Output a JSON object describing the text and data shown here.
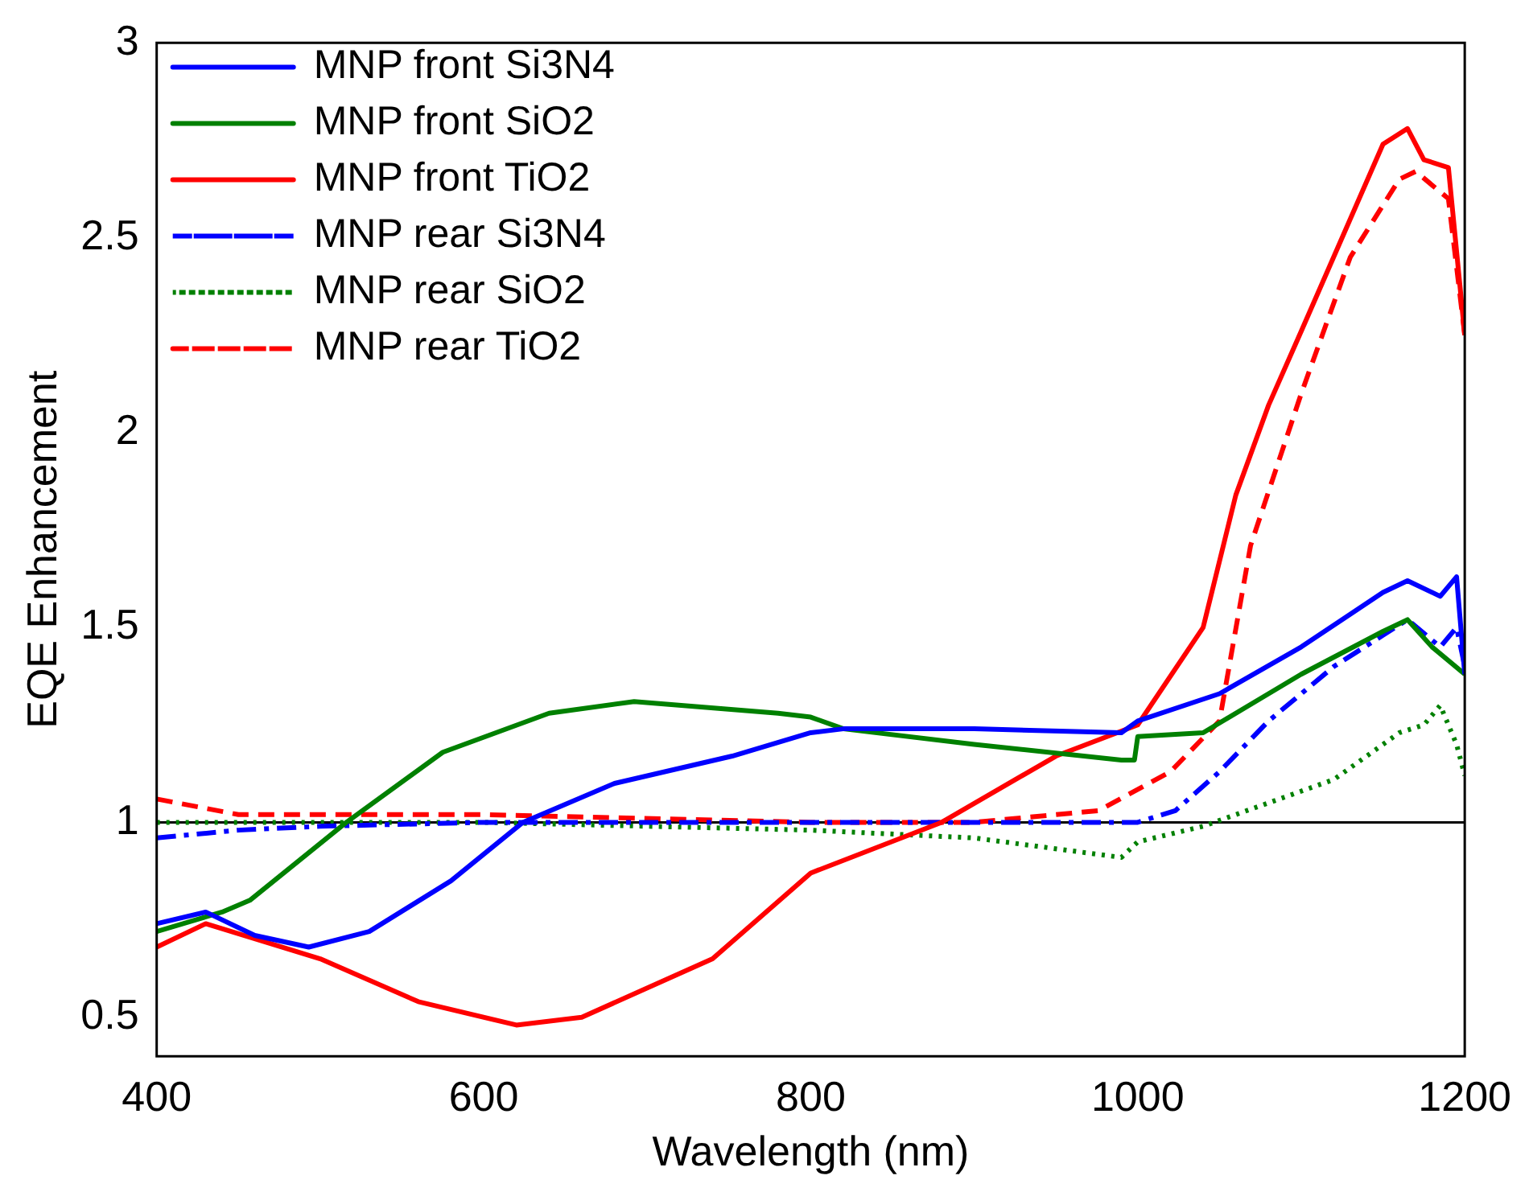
{
  "chart_data": {
    "type": "line",
    "xlabel": "Wavelength (nm)",
    "ylabel": "EQE Enhancement",
    "xlim": [
      400,
      1200
    ],
    "xticks": [
      400,
      600,
      800,
      1000,
      1200
    ],
    "ylim": [
      0.4,
      3
    ],
    "yticks": [
      0.5,
      1,
      1.5,
      2,
      2.5,
      3
    ],
    "grid": false,
    "legend": "top left",
    "marker": "none",
    "ref_lines": [
      {
        "axis": "y",
        "value": 1,
        "color": "#000000"
      }
    ],
    "series": [
      {
        "name": "MNP front Si3N4",
        "color": "#0000ff",
        "line_style": "solid",
        "x": [
          400,
          430,
          460,
          493,
          530,
          580,
          624,
          680,
          752,
          800,
          820,
          900,
          990,
          1000,
          1050,
          1100,
          1150,
          1165,
          1185,
          1195,
          1200
        ],
        "values": [
          0.74,
          0.77,
          0.71,
          0.68,
          0.72,
          0.85,
          1.0,
          1.1,
          1.17,
          1.23,
          1.24,
          1.24,
          1.23,
          1.26,
          1.33,
          1.45,
          1.59,
          1.62,
          1.58,
          1.63,
          1.38
        ]
      },
      {
        "name": "MNP front SiO2",
        "color": "#008000",
        "line_style": "solid",
        "x": [
          400,
          440,
          457,
          516,
          575,
          640,
          692,
          780,
          800,
          820,
          900,
          990,
          998,
          1000,
          1040,
          1100,
          1150,
          1165,
          1180,
          1200
        ],
        "values": [
          0.72,
          0.77,
          0.8,
          1.0,
          1.18,
          1.28,
          1.31,
          1.28,
          1.27,
          1.24,
          1.2,
          1.16,
          1.16,
          1.22,
          1.23,
          1.38,
          1.49,
          1.52,
          1.45,
          1.38
        ]
      },
      {
        "name": "MNP front TiO2",
        "color": "#ff0000",
        "line_style": "solid",
        "x": [
          400,
          430,
          500,
          560,
          620,
          660,
          740,
          800,
          880,
          950,
          1000,
          1040,
          1060,
          1080,
          1100,
          1150,
          1165,
          1175,
          1190,
          1200
        ],
        "values": [
          0.68,
          0.74,
          0.65,
          0.54,
          0.48,
          0.5,
          0.65,
          0.87,
          1.0,
          1.17,
          1.25,
          1.5,
          1.84,
          2.07,
          2.26,
          2.74,
          2.78,
          2.7,
          2.68,
          2.25
        ]
      },
      {
        "name": "MNP rear Si3N4",
        "color": "#0000ff",
        "line_style": "dashdot",
        "x": [
          400,
          450,
          500,
          600,
          800,
          1000,
          1023,
          1050,
          1080,
          1120,
          1150,
          1165,
          1185,
          1195,
          1200
        ],
        "values": [
          0.96,
          0.98,
          0.99,
          1.0,
          1.0,
          1.0,
          1.03,
          1.13,
          1.26,
          1.4,
          1.48,
          1.52,
          1.45,
          1.5,
          1.4
        ]
      },
      {
        "name": "MNP rear SiO2",
        "color": "#008000",
        "line_style": "dotted",
        "x": [
          400,
          600,
          800,
          900,
          990,
          1000,
          1040,
          1080,
          1120,
          1160,
          1175,
          1185,
          1195,
          1200
        ],
        "values": [
          1.0,
          1.0,
          0.98,
          0.96,
          0.91,
          0.95,
          0.99,
          1.05,
          1.11,
          1.23,
          1.25,
          1.3,
          1.2,
          1.12
        ]
      },
      {
        "name": "MNP rear TiO2",
        "color": "#ff0000",
        "line_style": "dashed",
        "x": [
          400,
          450,
          600,
          800,
          900,
          976,
          1020,
          1050,
          1069,
          1100,
          1130,
          1160,
          1170,
          1190,
          1200
        ],
        "values": [
          1.06,
          1.02,
          1.02,
          1.0,
          1.0,
          1.03,
          1.13,
          1.26,
          1.71,
          2.1,
          2.45,
          2.65,
          2.67,
          2.6,
          2.25
        ]
      }
    ]
  }
}
